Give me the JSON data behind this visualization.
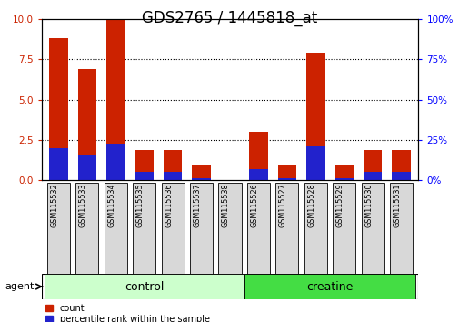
{
  "title": "GDS2765 / 1445818_at",
  "samples": [
    "GSM115532",
    "GSM115533",
    "GSM115534",
    "GSM115535",
    "GSM115536",
    "GSM115537",
    "GSM115538",
    "GSM115526",
    "GSM115527",
    "GSM115528",
    "GSM115529",
    "GSM115530",
    "GSM115531"
  ],
  "red_values": [
    8.8,
    6.9,
    10.0,
    1.9,
    1.9,
    1.0,
    0.0,
    3.0,
    1.0,
    7.9,
    1.0,
    1.9,
    1.9
  ],
  "blue_values": [
    2.0,
    1.6,
    2.3,
    0.5,
    0.5,
    0.1,
    0.0,
    0.7,
    0.1,
    2.1,
    0.1,
    0.55,
    0.5
  ],
  "groups": [
    {
      "label": "control",
      "start": 0,
      "end": 7,
      "color": "#ccffcc"
    },
    {
      "label": "creatine",
      "start": 7,
      "end": 13,
      "color": "#44dd44"
    }
  ],
  "ylim_left": [
    0,
    10
  ],
  "ylim_right": [
    0,
    100
  ],
  "yticks_left": [
    0,
    2.5,
    5,
    7.5,
    10
  ],
  "yticks_right": [
    0,
    25,
    50,
    75,
    100
  ],
  "bar_color_red": "#cc2200",
  "bar_color_blue": "#2222cc",
  "bar_width": 0.65,
  "agent_label": "agent",
  "legend_count": "count",
  "legend_percentile": "percentile rank within the sample",
  "title_fontsize": 12,
  "tick_fontsize": 7.5,
  "label_fontsize": 8
}
